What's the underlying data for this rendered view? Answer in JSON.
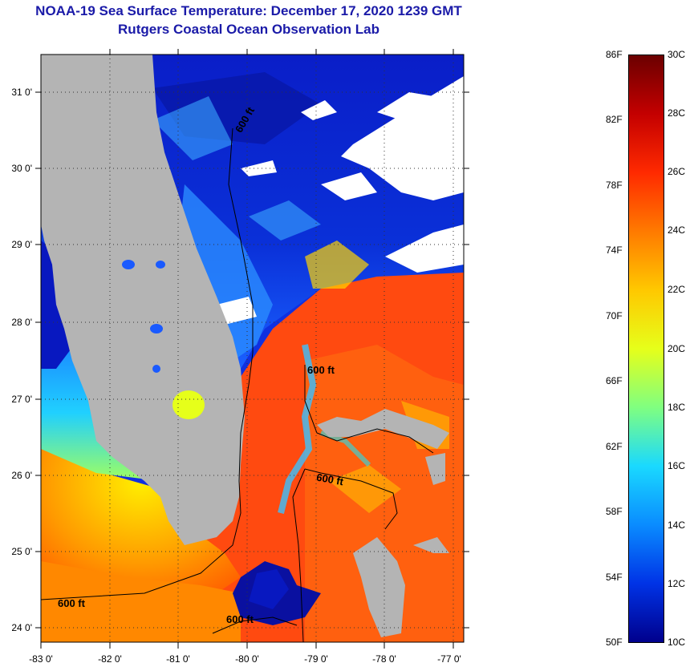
{
  "title": "NOAA-19 Sea Surface Temperature:  December 17, 2020 1239 GMT",
  "subtitle": "Rutgers Coastal Ocean Observation Lab",
  "map": {
    "lat_range": [
      23.85,
      31.4
    ],
    "lon_range": [
      -83.0,
      -76.9
    ],
    "lat_ticks": [
      "24 0'",
      "25 0'",
      "26 0'",
      "27 0'",
      "28 0'",
      "29 0'",
      "30 0'",
      "31 0'"
    ],
    "lon_ticks": [
      "-83 0'",
      "-82 0'",
      "-81 0'",
      "-80 0'",
      "-79 0'",
      "-78 0'",
      "-77 0'"
    ],
    "contour_labels": [
      "600 ft",
      "600 ft",
      "600 ft",
      "600 ft",
      "600 ft"
    ]
  },
  "colorbar": {
    "fahrenheit": [
      "86F",
      "82F",
      "78F",
      "74F",
      "70F",
      "66F",
      "62F",
      "58F",
      "54F",
      "50F"
    ],
    "celsius": [
      "30C",
      "28C",
      "26C",
      "24C",
      "22C",
      "20C",
      "18C",
      "16C",
      "14C",
      "12C",
      "10C"
    ],
    "colors": [
      "#6b0000",
      "#c40000",
      "#ff2a00",
      "#ff7a00",
      "#ffc800",
      "#e6ff1a",
      "#80ff80",
      "#1ad9ff",
      "#0a8cff",
      "#0033e6",
      "#00008c"
    ]
  },
  "colors": {
    "land": "#b4b4b4",
    "cloud": "#ffffff",
    "title": "#1a1aa8"
  }
}
